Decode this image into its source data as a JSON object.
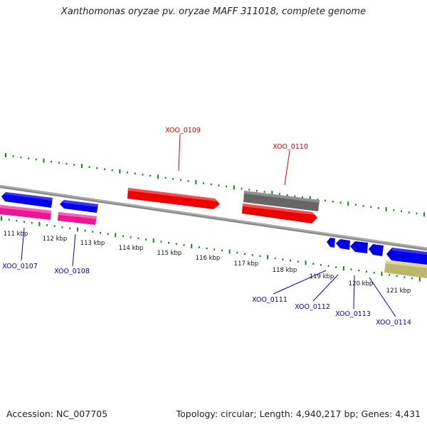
{
  "title": "Xanthomonas oryzae pv. oryzae MAFF 311018, complete genome",
  "footer": {
    "accession": "Accession: NC_007705",
    "summary": "Topology: circular; Length: 4,940,217 bp; Genes: 4,431"
  },
  "colors": {
    "backbone": "#8c8c8c",
    "tick": "#138a13",
    "forward_label": "#e00000",
    "reverse_label": "#0000cc",
    "blue_gene": "#0000ee",
    "pink_gene": "#ee1493",
    "red_gene": "#ee0000",
    "gray_gene": "#666666",
    "khaki_gene": "#bdb76b"
  },
  "ticks": [
    "111 kbp",
    "112 kbp",
    "113 kbp",
    "114 kbp",
    "115 kbp",
    "116 kbp",
    "117 kbp",
    "118 kbp",
    "119 kbp",
    "120 kbp",
    "121 kbp"
  ],
  "gene_labels": [
    "XOO_0107",
    "XOO_0108",
    "XOO_0109",
    "XOO_0110",
    "XOO_0111",
    "XOO_0112",
    "XOO_0113",
    "XOO_0114"
  ]
}
